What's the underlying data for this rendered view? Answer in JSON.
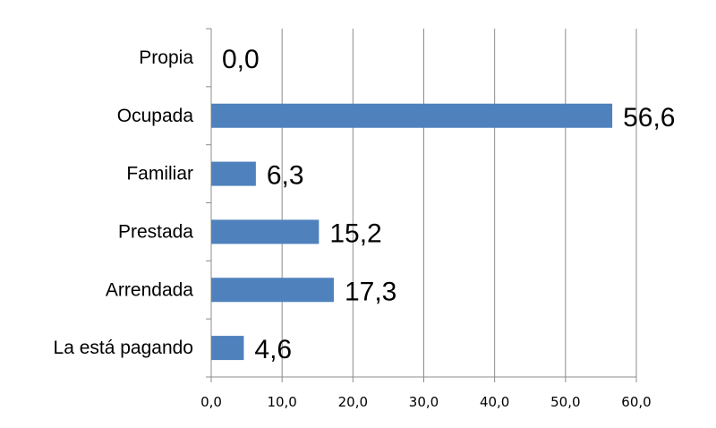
{
  "chart_data": {
    "type": "bar",
    "orientation": "horizontal",
    "categories": [
      "Propia",
      "Ocupada",
      "Familiar",
      "Prestada",
      "Arrendada",
      "La está pagando"
    ],
    "values": [
      0.0,
      56.6,
      6.3,
      15.2,
      17.3,
      4.6
    ],
    "value_labels": [
      "0,0",
      "56,6",
      "6,3",
      "15,2",
      "17,3",
      "4,6"
    ],
    "xlim": [
      0,
      60
    ],
    "x_ticks": [
      0,
      10,
      20,
      30,
      40,
      50,
      60
    ],
    "x_tick_labels": [
      "0,0",
      "10,0",
      "20,0",
      "30,0",
      "40,0",
      "50,0",
      "60,0"
    ],
    "grid": "vertical",
    "legend": "none",
    "bar_color": "#4f81bd",
    "title": "",
    "xlabel": "",
    "ylabel": ""
  }
}
